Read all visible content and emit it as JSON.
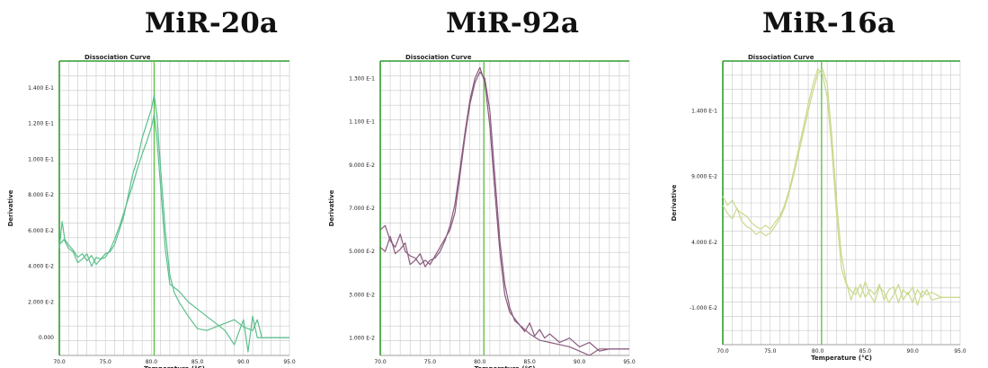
{
  "panels": [
    {
      "title": "MiR-20a"
    },
    {
      "title": "MiR-92a"
    },
    {
      "title": "MiR-16a"
    }
  ],
  "chart_data": [
    {
      "type": "line",
      "title": "Dissociation Curve",
      "xlabel": "Temperature (°C)",
      "ylabel": "Derivative",
      "xlim": [
        70.0,
        95.0
      ],
      "ylim": [
        -0.01,
        0.155
      ],
      "x_ticks": [
        "70.0",
        "75.0",
        "80.0",
        "85.0",
        "90.0",
        "95.0"
      ],
      "y_ticks": [
        {
          "value": 0.14,
          "label": "1.400 E-1"
        },
        {
          "value": 0.12,
          "label": "1.200 E-1"
        },
        {
          "value": 0.1,
          "label": "1.000 E-1"
        },
        {
          "value": 0.08,
          "label": "8.000 E-2"
        },
        {
          "value": 0.06,
          "label": "6.000 E-2"
        },
        {
          "value": 0.04,
          "label": "4.000 E-2"
        },
        {
          "value": 0.02,
          "label": "2.000 E-2"
        },
        {
          "value": 0.0,
          "label": "0.000"
        }
      ],
      "grid": true,
      "threshold_x": 80.3,
      "colors": {
        "series": "#5bbf8c",
        "threshold": "#63c24a",
        "axis": "#2e9d2e",
        "grid": "#c8c8c8"
      },
      "series": [
        {
          "x": [
            70.0,
            70.3,
            70.6,
            71.0,
            71.5,
            72.0,
            72.5,
            73.0,
            73.5,
            74.0,
            74.5,
            75.0,
            75.5,
            76.0,
            76.5,
            77.0,
            77.5,
            78.0,
            78.5,
            79.0,
            79.5,
            80.0,
            80.3,
            80.6,
            81.0,
            81.5,
            82.0,
            82.5,
            83.0,
            83.5,
            84.0,
            85.0,
            86.0,
            87.0,
            88.0,
            89.0,
            90.0,
            91.0,
            91.5,
            92.0,
            92.5,
            93.0,
            94.0,
            95.0
          ],
          "values": [
            0.05,
            0.065,
            0.055,
            0.052,
            0.049,
            0.045,
            0.047,
            0.043,
            0.046,
            0.041,
            0.044,
            0.047,
            0.048,
            0.052,
            0.06,
            0.068,
            0.08,
            0.092,
            0.1,
            0.112,
            0.12,
            0.128,
            0.136,
            0.125,
            0.095,
            0.06,
            0.035,
            0.025,
            0.02,
            0.016,
            0.012,
            0.005,
            0.004,
            0.006,
            0.008,
            0.01,
            0.006,
            0.004,
            0.01,
            0.0,
            0.0,
            0.0,
            0.0,
            0.0
          ]
        },
        {
          "x": [
            70.0,
            70.5,
            71.0,
            71.5,
            72.0,
            72.5,
            73.0,
            73.5,
            74.0,
            74.5,
            75.0,
            75.5,
            76.0,
            76.5,
            77.0,
            77.5,
            78.0,
            78.5,
            79.0,
            79.5,
            80.0,
            80.3,
            80.6,
            81.0,
            81.5,
            82.0,
            82.5,
            83.0,
            84.0,
            85.0,
            86.0,
            87.0,
            88.0,
            89.0,
            90.0,
            90.5,
            91.0,
            91.5,
            92.0,
            93.0,
            94.0,
            95.0
          ],
          "values": [
            0.052,
            0.055,
            0.05,
            0.048,
            0.042,
            0.044,
            0.047,
            0.04,
            0.045,
            0.044,
            0.045,
            0.049,
            0.055,
            0.062,
            0.07,
            0.078,
            0.086,
            0.095,
            0.103,
            0.11,
            0.118,
            0.125,
            0.112,
            0.085,
            0.05,
            0.03,
            0.028,
            0.026,
            0.02,
            0.016,
            0.012,
            0.008,
            0.004,
            -0.004,
            0.01,
            -0.008,
            0.012,
            0.0,
            0.0,
            0.0,
            0.0,
            0.0
          ]
        }
      ]
    },
    {
      "type": "line",
      "title": "Dissociation Curve",
      "xlabel": "Temperature (°C)",
      "ylabel": "Derivative",
      "xlim": [
        70.0,
        95.0
      ],
      "ylim": [
        0.002,
        0.138
      ],
      "x_ticks": [
        "70.0",
        "75.0",
        "80.0",
        "85.0",
        "90.0",
        "95.0"
      ],
      "y_ticks": [
        {
          "value": 0.13,
          "label": "1.300 E-1"
        },
        {
          "value": 0.11,
          "label": "1.100 E-1"
        },
        {
          "value": 0.09,
          "label": "9.000 E-2"
        },
        {
          "value": 0.07,
          "label": "7.000 E-2"
        },
        {
          "value": 0.05,
          "label": "5.000 E-2"
        },
        {
          "value": 0.03,
          "label": "3.000 E-2"
        },
        {
          "value": 0.01,
          "label": "1.000 E-2"
        }
      ],
      "grid": true,
      "threshold_x": 80.4,
      "colors": {
        "series": "#8a5a7e",
        "threshold": "#63c24a",
        "axis": "#2e9d2e",
        "grid": "#c8c8c8"
      },
      "series": [
        {
          "x": [
            70.0,
            70.5,
            71.0,
            71.5,
            72.0,
            72.5,
            73.0,
            73.5,
            74.0,
            74.5,
            75.0,
            75.5,
            76.0,
            76.5,
            77.0,
            77.5,
            78.0,
            78.5,
            79.0,
            79.5,
            80.0,
            80.5,
            81.0,
            81.5,
            82.0,
            82.5,
            83.0,
            83.5,
            84.0,
            84.5,
            85.0,
            85.5,
            86.0,
            86.5,
            87.0,
            88.0,
            89.0,
            90.0,
            91.0,
            92.0,
            93.0,
            94.0,
            95.0
          ],
          "values": [
            0.06,
            0.062,
            0.055,
            0.052,
            0.058,
            0.05,
            0.048,
            0.047,
            0.044,
            0.046,
            0.044,
            0.048,
            0.052,
            0.056,
            0.06,
            0.068,
            0.085,
            0.103,
            0.118,
            0.128,
            0.133,
            0.13,
            0.115,
            0.085,
            0.055,
            0.035,
            0.024,
            0.018,
            0.016,
            0.013,
            0.017,
            0.011,
            0.014,
            0.01,
            0.012,
            0.008,
            0.01,
            0.006,
            0.008,
            0.004,
            0.005,
            0.005,
            0.005
          ]
        },
        {
          "x": [
            70.0,
            70.5,
            71.0,
            71.5,
            72.0,
            72.5,
            73.0,
            73.5,
            74.0,
            74.5,
            75.0,
            75.5,
            76.0,
            76.5,
            77.0,
            77.5,
            78.0,
            78.5,
            79.0,
            79.5,
            80.0,
            80.5,
            81.0,
            81.5,
            82.0,
            82.5,
            83.0,
            84.0,
            85.0,
            86.0,
            87.0,
            88.0,
            89.0,
            90.0,
            90.5,
            91.0,
            92.0,
            93.0,
            94.0,
            95.0
          ],
          "values": [
            0.052,
            0.05,
            0.057,
            0.049,
            0.051,
            0.054,
            0.044,
            0.046,
            0.049,
            0.043,
            0.046,
            0.047,
            0.05,
            0.055,
            0.062,
            0.072,
            0.088,
            0.105,
            0.12,
            0.13,
            0.135,
            0.128,
            0.108,
            0.078,
            0.05,
            0.03,
            0.022,
            0.016,
            0.012,
            0.009,
            0.008,
            0.007,
            0.006,
            0.004,
            0.003,
            0.002,
            0.005,
            0.005,
            0.005,
            0.005
          ]
        }
      ]
    },
    {
      "type": "line",
      "title": "Dissociation Curve",
      "xlabel": "Temperature (°C)",
      "ylabel": "Derivative",
      "xlim": [
        70.0,
        95.0
      ],
      "ylim": [
        -0.038,
        0.178
      ],
      "x_ticks": [
        "70.0",
        "75.0",
        "80.0",
        "85.0",
        "90.0",
        "95.0"
      ],
      "y_ticks": [
        {
          "value": 0.14,
          "label": "1.400 E-1"
        },
        {
          "value": 0.09,
          "label": "9.000 E-2"
        },
        {
          "value": 0.04,
          "label": "4.000 E-2"
        },
        {
          "value": -0.01,
          "label": "-1.000 E-2"
        }
      ],
      "grid": true,
      "threshold_x": 80.4,
      "colors": {
        "series": "#c9d98c",
        "threshold": "#63c24a",
        "axis": "#2e9d2e",
        "grid": "#c8c8c8"
      },
      "series": [
        {
          "x": [
            70.0,
            70.5,
            71.0,
            71.5,
            72.0,
            72.5,
            73.0,
            73.5,
            74.0,
            74.5,
            75.0,
            75.5,
            76.0,
            76.5,
            77.0,
            77.5,
            78.0,
            78.5,
            79.0,
            79.5,
            80.0,
            80.5,
            81.0,
            81.5,
            82.0,
            82.5,
            83.0,
            83.5,
            84.0,
            84.5,
            85.0,
            85.5,
            86.0,
            86.5,
            87.0,
            87.5,
            88.0,
            88.5,
            89.0,
            89.5,
            90.0,
            90.5,
            91.0,
            91.5,
            92.0,
            93.0,
            94.0,
            95.0
          ],
          "values": [
            0.075,
            0.068,
            0.072,
            0.065,
            0.062,
            0.06,
            0.055,
            0.052,
            0.05,
            0.053,
            0.05,
            0.055,
            0.06,
            0.068,
            0.08,
            0.095,
            0.112,
            0.128,
            0.145,
            0.16,
            0.172,
            0.168,
            0.15,
            0.11,
            0.06,
            0.02,
            0.008,
            0.003,
            0.0,
            0.008,
            -0.002,
            0.004,
            0.0,
            0.008,
            -0.004,
            0.004,
            0.006,
            -0.006,
            0.004,
            0.0,
            0.006,
            -0.008,
            0.003,
            0.0,
            0.002,
            -0.002,
            -0.002,
            -0.002
          ]
        },
        {
          "x": [
            70.0,
            70.5,
            71.0,
            71.5,
            72.0,
            72.5,
            73.0,
            73.5,
            74.0,
            74.5,
            75.0,
            75.5,
            76.0,
            76.5,
            77.0,
            77.5,
            78.0,
            78.5,
            79.0,
            79.5,
            80.0,
            80.5,
            81.0,
            81.5,
            82.0,
            82.5,
            83.0,
            83.5,
            84.0,
            84.5,
            85.0,
            85.5,
            86.0,
            86.5,
            87.0,
            87.5,
            88.0,
            88.5,
            89.0,
            89.5,
            90.0,
            90.5,
            91.0,
            91.5,
            92.0,
            93.0,
            94.0,
            95.0
          ],
          "values": [
            0.068,
            0.062,
            0.058,
            0.066,
            0.056,
            0.052,
            0.05,
            0.046,
            0.048,
            0.045,
            0.047,
            0.052,
            0.058,
            0.066,
            0.078,
            0.092,
            0.108,
            0.124,
            0.14,
            0.155,
            0.168,
            0.172,
            0.16,
            0.12,
            0.07,
            0.03,
            0.01,
            -0.004,
            0.006,
            -0.002,
            0.01,
            0.0,
            -0.006,
            0.006,
            0.002,
            -0.006,
            0.0,
            0.008,
            -0.004,
            0.002,
            -0.006,
            0.004,
            -0.002,
            0.004,
            -0.004,
            -0.002,
            -0.002,
            -0.002
          ]
        }
      ]
    }
  ]
}
